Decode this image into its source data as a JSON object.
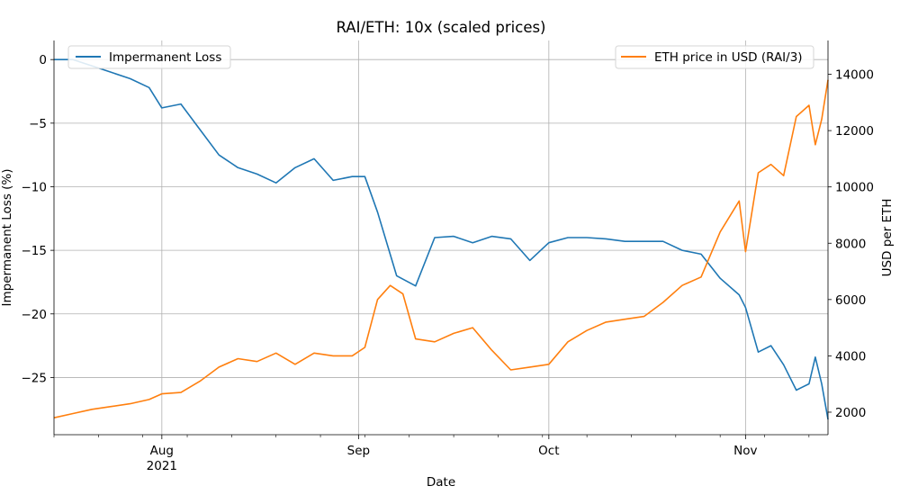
{
  "chart_data": {
    "type": "line",
    "title": "RAI/ETH: 10x (scaled prices)",
    "xlabel": "Date",
    "x_range": [
      "2021-07-15",
      "2021-11-14"
    ],
    "x_ticks": [
      {
        "date": "2021-08-01",
        "label": "Aug",
        "sublabel": "2021"
      },
      {
        "date": "2021-09-01",
        "label": "Sep",
        "sublabel": ""
      },
      {
        "date": "2021-10-01",
        "label": "Oct",
        "sublabel": ""
      },
      {
        "date": "2021-11-01",
        "label": "Nov",
        "sublabel": ""
      }
    ],
    "grid": true,
    "left_axis": {
      "label": "Impermanent Loss (%)",
      "ylim": [
        -29.5,
        1.5
      ],
      "ticks": [
        0,
        -5,
        -10,
        -15,
        -20,
        -25
      ],
      "tick_labels": [
        "0",
        "−5",
        "−10",
        "−15",
        "−20",
        "−25"
      ]
    },
    "right_axis": {
      "label": "USD per ETH",
      "ylim": [
        1200,
        15200
      ],
      "ticks": [
        2000,
        4000,
        6000,
        8000,
        10000,
        12000,
        14000
      ],
      "tick_labels": [
        "2000",
        "4000",
        "6000",
        "8000",
        "10000",
        "12000",
        "14000"
      ]
    },
    "series": [
      {
        "name": "Impermanent Loss",
        "axis": "left",
        "color": "#1f77b4",
        "legend_position": "top-left",
        "points": [
          [
            "2021-07-15",
            0.0
          ],
          [
            "2021-07-18",
            0.0
          ],
          [
            "2021-07-21",
            -0.5
          ],
          [
            "2021-07-24",
            -1.0
          ],
          [
            "2021-07-27",
            -1.5
          ],
          [
            "2021-07-30",
            -2.2
          ],
          [
            "2021-08-01",
            -3.8
          ],
          [
            "2021-08-04",
            -3.5
          ],
          [
            "2021-08-07",
            -5.5
          ],
          [
            "2021-08-10",
            -7.5
          ],
          [
            "2021-08-13",
            -8.5
          ],
          [
            "2021-08-16",
            -9.0
          ],
          [
            "2021-08-19",
            -9.7
          ],
          [
            "2021-08-22",
            -8.5
          ],
          [
            "2021-08-25",
            -7.8
          ],
          [
            "2021-08-28",
            -9.5
          ],
          [
            "2021-08-31",
            -9.2
          ],
          [
            "2021-09-02",
            -9.2
          ],
          [
            "2021-09-04",
            -12.0
          ],
          [
            "2021-09-07",
            -17.0
          ],
          [
            "2021-09-10",
            -17.8
          ],
          [
            "2021-09-13",
            -14.0
          ],
          [
            "2021-09-16",
            -13.9
          ],
          [
            "2021-09-19",
            -14.4
          ],
          [
            "2021-09-22",
            -13.9
          ],
          [
            "2021-09-25",
            -14.1
          ],
          [
            "2021-09-28",
            -15.8
          ],
          [
            "2021-10-01",
            -14.4
          ],
          [
            "2021-10-04",
            -14.0
          ],
          [
            "2021-10-07",
            -14.0
          ],
          [
            "2021-10-10",
            -14.1
          ],
          [
            "2021-10-13",
            -14.3
          ],
          [
            "2021-10-16",
            -14.3
          ],
          [
            "2021-10-19",
            -14.3
          ],
          [
            "2021-10-22",
            -15.0
          ],
          [
            "2021-10-25",
            -15.3
          ],
          [
            "2021-10-28",
            -17.2
          ],
          [
            "2021-10-31",
            -18.5
          ],
          [
            "2021-11-01",
            -19.5
          ],
          [
            "2021-11-03",
            -23.0
          ],
          [
            "2021-11-05",
            -22.5
          ],
          [
            "2021-11-07",
            -24.0
          ],
          [
            "2021-11-09",
            -26.0
          ],
          [
            "2021-11-11",
            -25.5
          ],
          [
            "2021-11-12",
            -23.4
          ],
          [
            "2021-11-13",
            -25.5
          ],
          [
            "2021-11-14",
            -28.3
          ]
        ]
      },
      {
        "name": "ETH price in USD (RAI/3)",
        "axis": "right",
        "color": "#ff7f0e",
        "legend_position": "top-right",
        "points": [
          [
            "2021-07-15",
            1800
          ],
          [
            "2021-07-18",
            1950
          ],
          [
            "2021-07-21",
            2100
          ],
          [
            "2021-07-24",
            2200
          ],
          [
            "2021-07-27",
            2300
          ],
          [
            "2021-07-30",
            2450
          ],
          [
            "2021-08-01",
            2650
          ],
          [
            "2021-08-04",
            2700
          ],
          [
            "2021-08-07",
            3100
          ],
          [
            "2021-08-10",
            3600
          ],
          [
            "2021-08-13",
            3900
          ],
          [
            "2021-08-16",
            3800
          ],
          [
            "2021-08-19",
            4100
          ],
          [
            "2021-08-22",
            3700
          ],
          [
            "2021-08-25",
            4100
          ],
          [
            "2021-08-28",
            4000
          ],
          [
            "2021-08-31",
            4000
          ],
          [
            "2021-09-02",
            4300
          ],
          [
            "2021-09-04",
            6000
          ],
          [
            "2021-09-06",
            6500
          ],
          [
            "2021-09-08",
            6200
          ],
          [
            "2021-09-10",
            4600
          ],
          [
            "2021-09-13",
            4500
          ],
          [
            "2021-09-16",
            4800
          ],
          [
            "2021-09-19",
            5000
          ],
          [
            "2021-09-22",
            4200
          ],
          [
            "2021-09-25",
            3500
          ],
          [
            "2021-09-28",
            3600
          ],
          [
            "2021-10-01",
            3700
          ],
          [
            "2021-10-04",
            4500
          ],
          [
            "2021-10-07",
            4900
          ],
          [
            "2021-10-10",
            5200
          ],
          [
            "2021-10-13",
            5300
          ],
          [
            "2021-10-16",
            5400
          ],
          [
            "2021-10-19",
            5900
          ],
          [
            "2021-10-22",
            6500
          ],
          [
            "2021-10-25",
            6800
          ],
          [
            "2021-10-28",
            8400
          ],
          [
            "2021-10-31",
            9500
          ],
          [
            "2021-11-01",
            7700
          ],
          [
            "2021-11-03",
            10500
          ],
          [
            "2021-11-05",
            10800
          ],
          [
            "2021-11-07",
            10400
          ],
          [
            "2021-11-09",
            12500
          ],
          [
            "2021-11-11",
            12900
          ],
          [
            "2021-11-12",
            11500
          ],
          [
            "2021-11-13",
            12400
          ],
          [
            "2021-11-14",
            13800
          ]
        ]
      }
    ]
  }
}
